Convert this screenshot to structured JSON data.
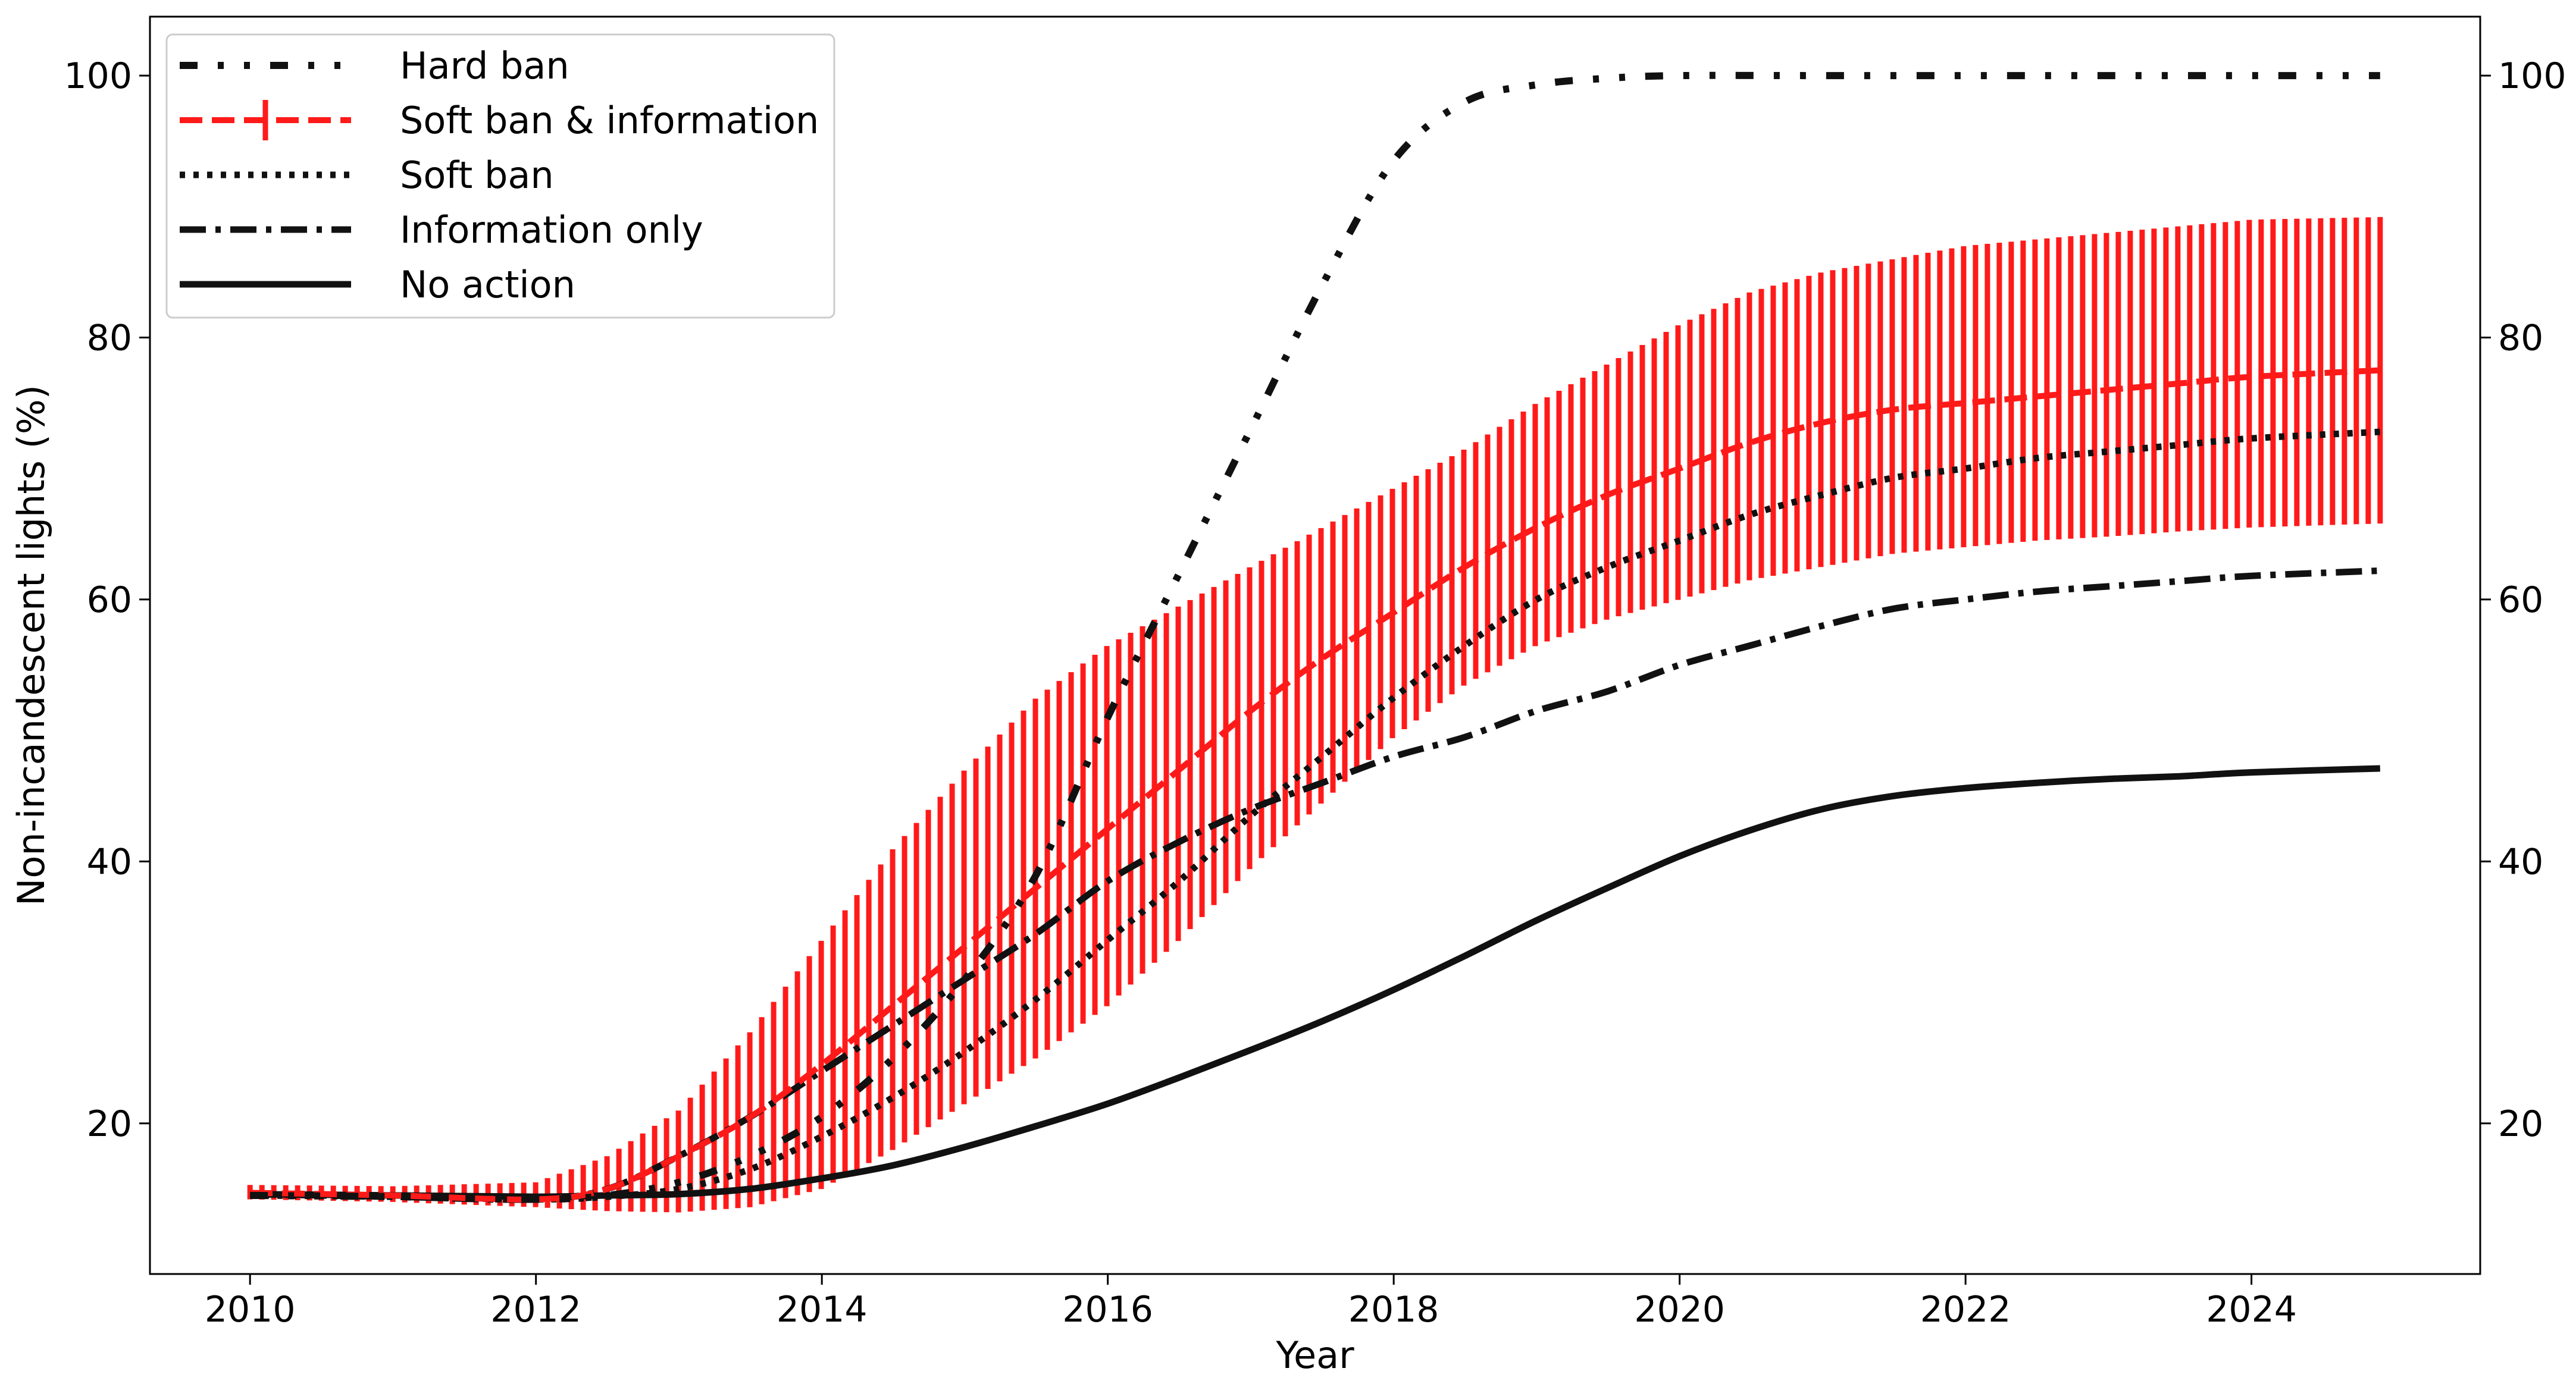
{
  "chart_data": {
    "type": "line",
    "xlabel": "Year",
    "ylabel": "Non-incandescent lights (%)",
    "xlim": [
      2009.3,
      2025.6
    ],
    "ylim": [
      8.5,
      104.5
    ],
    "x_ticks": [
      2010,
      2012,
      2014,
      2016,
      2018,
      2020,
      2022,
      2024
    ],
    "y_ticks": [
      20,
      40,
      60,
      80,
      100
    ],
    "secondary_y_axis": true,
    "grid": false,
    "legend_position": "upper-left",
    "legend": [
      "Hard ban",
      "Soft ban & information",
      "Soft ban",
      "Information only",
      "No action"
    ],
    "series": [
      {
        "name": "Hard ban",
        "style": "dash-dot-dot",
        "color": "#111111",
        "x": [
          2010,
          2011,
          2012,
          2012.5,
          2013,
          2013.5,
          2014,
          2014.5,
          2015,
          2015.5,
          2016,
          2016.5,
          2017,
          2017.5,
          2018,
          2018.5,
          2019,
          2019.5,
          2020,
          2021,
          2022,
          2023,
          2024,
          2024.9
        ],
        "y": [
          14.5,
          14.4,
          14.2,
          14.5,
          15.5,
          17.5,
          20.5,
          25.0,
          31.0,
          39.0,
          51.0,
          62.0,
          73.0,
          84.0,
          93.5,
          98.0,
          99.3,
          99.8,
          100,
          100,
          100,
          100,
          100,
          100
        ]
      },
      {
        "name": "Soft ban & information",
        "style": "dashed",
        "color": "#ff1a1a",
        "errorbars": true,
        "x": [
          2010,
          2011,
          2012,
          2012.5,
          2013,
          2013.5,
          2014,
          2014.5,
          2015,
          2015.5,
          2016,
          2016.5,
          2017,
          2017.5,
          2018,
          2018.5,
          2019,
          2019.5,
          2020,
          2020.5,
          2021,
          2021.5,
          2022,
          2022.5,
          2023,
          2023.5,
          2024,
          2024.9
        ],
        "y": [
          14.7,
          14.5,
          14.2,
          15.0,
          17.5,
          20.5,
          24.5,
          29.0,
          33.5,
          38.0,
          42.5,
          47.0,
          51.5,
          55.5,
          59.0,
          62.5,
          65.5,
          68.0,
          70.0,
          72.0,
          73.5,
          74.5,
          75.0,
          75.5,
          76.0,
          76.5,
          77.0,
          77.5
        ],
        "lower": [
          14.2,
          14.0,
          13.6,
          13.3,
          13.2,
          13.6,
          15.0,
          18.0,
          21.5,
          25.0,
          29.0,
          34.0,
          39.5,
          44.5,
          49.5,
          53.5,
          56.5,
          58.5,
          60.0,
          61.5,
          62.5,
          63.5,
          64.0,
          64.5,
          64.8,
          65.2,
          65.5,
          65.8
        ],
        "upper": [
          15.3,
          15.2,
          15.5,
          17.5,
          21.0,
          27.0,
          34.0,
          41.0,
          47.0,
          52.5,
          56.5,
          59.5,
          62.5,
          65.5,
          68.5,
          71.5,
          75.0,
          78.0,
          81.0,
          83.5,
          85.0,
          86.0,
          87.0,
          87.5,
          88.0,
          88.5,
          89.0,
          89.2
        ]
      },
      {
        "name": "Soft ban",
        "style": "dotted",
        "color": "#111111",
        "x": [
          2010,
          2011,
          2012,
          2012.5,
          2013,
          2013.5,
          2014,
          2014.5,
          2015,
          2015.5,
          2016,
          2016.5,
          2017,
          2017.5,
          2018,
          2018.5,
          2019,
          2019.5,
          2020,
          2020.5,
          2021,
          2021.5,
          2022,
          2022.5,
          2023,
          2023.5,
          2024,
          2024.9
        ],
        "y": [
          14.5,
          14.4,
          14.2,
          14.4,
          15.0,
          16.5,
          19.0,
          22.0,
          25.5,
          29.5,
          34.0,
          38.5,
          43.5,
          48.0,
          52.5,
          56.5,
          60.0,
          62.5,
          64.5,
          66.5,
          68.0,
          69.3,
          70.0,
          70.8,
          71.3,
          71.8,
          72.3,
          72.8
        ]
      },
      {
        "name": "Information only",
        "style": "dash-dot",
        "color": "#111111",
        "x": [
          2010,
          2011,
          2012,
          2012.5,
          2013,
          2013.5,
          2014,
          2014.5,
          2015,
          2015.5,
          2016,
          2016.5,
          2017,
          2017.5,
          2018,
          2018.5,
          2019,
          2019.5,
          2020,
          2020.5,
          2021,
          2021.5,
          2022,
          2022.5,
          2023,
          2023.5,
          2024,
          2024.9
        ],
        "y": [
          14.6,
          14.4,
          14.2,
          15.0,
          17.5,
          20.5,
          24.0,
          27.5,
          31.0,
          34.5,
          38.5,
          41.5,
          44.0,
          46.0,
          48.0,
          49.5,
          51.5,
          53.0,
          55.0,
          56.5,
          58.0,
          59.3,
          60.0,
          60.6,
          61.0,
          61.4,
          61.8,
          62.2
        ]
      },
      {
        "name": "No action",
        "style": "solid",
        "color": "#111111",
        "x": [
          2010,
          2011,
          2012,
          2012.5,
          2013,
          2013.5,
          2014,
          2014.5,
          2015,
          2015.5,
          2016,
          2016.5,
          2017,
          2017.5,
          2018,
          2018.5,
          2019,
          2019.5,
          2020,
          2020.5,
          2021,
          2021.5,
          2022,
          2022.5,
          2023,
          2023.5,
          2024,
          2024.9
        ],
        "y": [
          14.6,
          14.5,
          14.4,
          14.5,
          14.6,
          15.0,
          15.8,
          16.8,
          18.2,
          19.8,
          21.5,
          23.5,
          25.6,
          27.8,
          30.2,
          32.8,
          35.5,
          38.0,
          40.4,
          42.4,
          44.0,
          45.0,
          45.6,
          46.0,
          46.3,
          46.5,
          46.8,
          47.1
        ]
      }
    ]
  }
}
